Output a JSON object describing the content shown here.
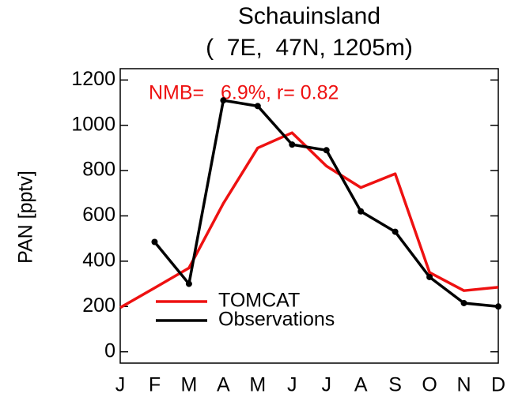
{
  "chart_data": {
    "type": "line",
    "title": "Schauinsland",
    "subtitle": "(  7E,  47N, 1205m)",
    "annotation": "NMB=   6.9%, r= 0.82",
    "y_label": "PAN [pptv]",
    "categories": [
      "J",
      "F",
      "M",
      "A",
      "M",
      "J",
      "J",
      "A",
      "S",
      "O",
      "N",
      "D"
    ],
    "series": [
      {
        "name": "TOMCAT",
        "color": "#ee1111",
        "values": [
          195,
          282,
          370,
          655,
          900,
          967,
          820,
          725,
          786,
          350,
          270,
          285
        ]
      },
      {
        "name": "Observations",
        "color": "#000000",
        "values": [
          null,
          485,
          300,
          1110,
          1085,
          915,
          890,
          620,
          530,
          330,
          215,
          200
        ]
      }
    ],
    "ylim": [
      -50,
      1250
    ],
    "yticks": [
      0,
      200,
      400,
      600,
      800,
      1000,
      1200
    ],
    "grid": false,
    "legend": "lower left"
  }
}
